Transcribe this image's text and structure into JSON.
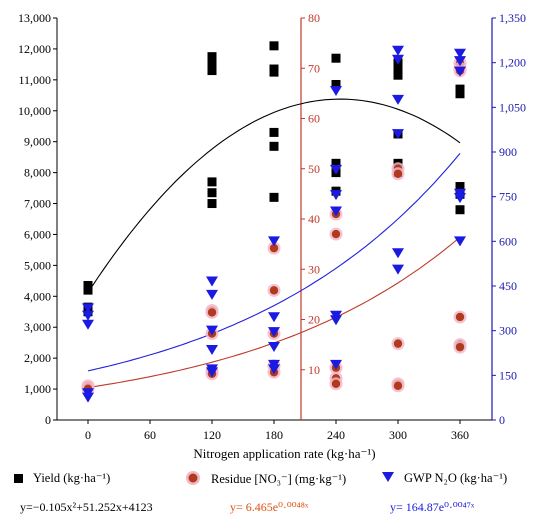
{
  "chart_data": {
    "type": "scatter",
    "xlabel": "Nitrogen application rate (kg·ha⁻¹)",
    "x_ticks": [
      0,
      60,
      120,
      180,
      240,
      300,
      360
    ],
    "axes": {
      "left": {
        "ylim": [
          0,
          13000
        ],
        "ticks": [
          "0",
          "1,000",
          "2,000",
          "3,000",
          "4,000",
          "5,000",
          "6,000",
          "7,000",
          "8,000",
          "9,000",
          "10,000",
          "11,000",
          "12,000",
          "13,000"
        ],
        "color": "#000000"
      },
      "middle": {
        "ylim": [
          0,
          80
        ],
        "ticks": [
          "10",
          "20",
          "30",
          "40",
          "50",
          "60",
          "70",
          "80"
        ],
        "color": "#c0392b"
      },
      "right": {
        "ylim": [
          0,
          1350
        ],
        "ticks": [
          "0",
          "150",
          "300",
          "450",
          "600",
          "750",
          "900",
          "1,050",
          "1,200",
          "1,350"
        ],
        "color": "#1a1ab0"
      }
    },
    "series": [
      {
        "name": "Yield (kg·ha⁻¹)",
        "axis": "left",
        "marker": "square",
        "color": "#000000",
        "points": [
          [
            0,
            4350
          ],
          [
            0,
            4200
          ],
          [
            0,
            3650
          ],
          [
            0,
            3500
          ],
          [
            120,
            11750
          ],
          [
            120,
            11500
          ],
          [
            120,
            11300
          ],
          [
            120,
            7700
          ],
          [
            120,
            7350
          ],
          [
            120,
            7000
          ],
          [
            180,
            12100
          ],
          [
            180,
            11350
          ],
          [
            180,
            11250
          ],
          [
            180,
            9300
          ],
          [
            180,
            8850
          ],
          [
            180,
            7200
          ],
          [
            240,
            11700
          ],
          [
            240,
            10850
          ],
          [
            240,
            8300
          ],
          [
            240,
            8000
          ],
          [
            240,
            7400
          ],
          [
            300,
            11550
          ],
          [
            300,
            11300
          ],
          [
            300,
            11150
          ],
          [
            300,
            9250
          ],
          [
            300,
            8300
          ],
          [
            300,
            8000
          ],
          [
            360,
            10700
          ],
          [
            360,
            10550
          ],
          [
            360,
            7550
          ],
          [
            360,
            7300
          ],
          [
            360,
            6800
          ]
        ],
        "fit": {
          "equation": "y=−0.105x²+51.252x+4123",
          "a": -0.105,
          "b": 51.252,
          "c": 4123
        }
      },
      {
        "name": "Residue [NO₃⁻] (mg·kg⁻¹)",
        "axis": "middle",
        "marker": "circle",
        "color": "#b03a1e",
        "points": [
          [
            0,
            6.8
          ],
          [
            0,
            6.5
          ],
          [
            0,
            6.2
          ],
          [
            120,
            21.8
          ],
          [
            120,
            21.4
          ],
          [
            120,
            17.2
          ],
          [
            120,
            9.8
          ],
          [
            120,
            9.2
          ],
          [
            180,
            34.2
          ],
          [
            180,
            25.8
          ],
          [
            180,
            17.2
          ],
          [
            180,
            10.8
          ],
          [
            180,
            9.5
          ],
          [
            240,
            41.0
          ],
          [
            240,
            37.0
          ],
          [
            240,
            10.4
          ],
          [
            240,
            8.3
          ],
          [
            240,
            7.2
          ],
          [
            300,
            50.0
          ],
          [
            300,
            49.0
          ],
          [
            300,
            15.2
          ],
          [
            300,
            7.2
          ],
          [
            300,
            6.8
          ],
          [
            360,
            71.0
          ],
          [
            360,
            70.0
          ],
          [
            360,
            69.5
          ],
          [
            360,
            20.5
          ],
          [
            360,
            15.0
          ],
          [
            360,
            14.5
          ]
        ],
        "fit": {
          "equation": "y= 6.465e⁰·⁰⁰⁴⁸ˣ",
          "a": 6.465,
          "k": 0.0048
        }
      },
      {
        "name": "GWP N₂O (kg·ha⁻¹)",
        "axis": "right",
        "marker": "triangle-down",
        "color": "#1a1ae0",
        "points": [
          [
            0,
            375
          ],
          [
            0,
            350
          ],
          [
            0,
            320
          ],
          [
            0,
            90
          ],
          [
            0,
            75
          ],
          [
            120,
            465
          ],
          [
            120,
            420
          ],
          [
            120,
            300
          ],
          [
            120,
            235
          ],
          [
            120,
            170
          ],
          [
            120,
            160
          ],
          [
            180,
            600
          ],
          [
            180,
            345
          ],
          [
            180,
            295
          ],
          [
            180,
            245
          ],
          [
            180,
            185
          ],
          [
            180,
            170
          ],
          [
            240,
            1105
          ],
          [
            240,
            840
          ],
          [
            240,
            755
          ],
          [
            240,
            700
          ],
          [
            240,
            350
          ],
          [
            240,
            335
          ],
          [
            240,
            185
          ],
          [
            300,
            1240
          ],
          [
            300,
            1210
          ],
          [
            300,
            1075
          ],
          [
            300,
            960
          ],
          [
            300,
            560
          ],
          [
            300,
            505
          ],
          [
            360,
            1230
          ],
          [
            360,
            1205
          ],
          [
            360,
            1170
          ],
          [
            360,
            760
          ],
          [
            360,
            745
          ],
          [
            360,
            600
          ]
        ],
        "fit": {
          "equation": "y= 164.87e⁰·⁰⁰⁴⁷ˣ",
          "a": 164.87,
          "k": 0.0047
        }
      }
    ],
    "legend": [
      {
        "marker": "square",
        "label": "Yield (kg·ha⁻¹)"
      },
      {
        "marker": "circle",
        "label": "Residue [NO₃⁻] (mg·kg⁻¹)"
      },
      {
        "marker": "triangle-down",
        "label": "GWP N₂O (kg·ha⁻¹)"
      }
    ],
    "legend_placement": "bottom",
    "grid": false
  }
}
